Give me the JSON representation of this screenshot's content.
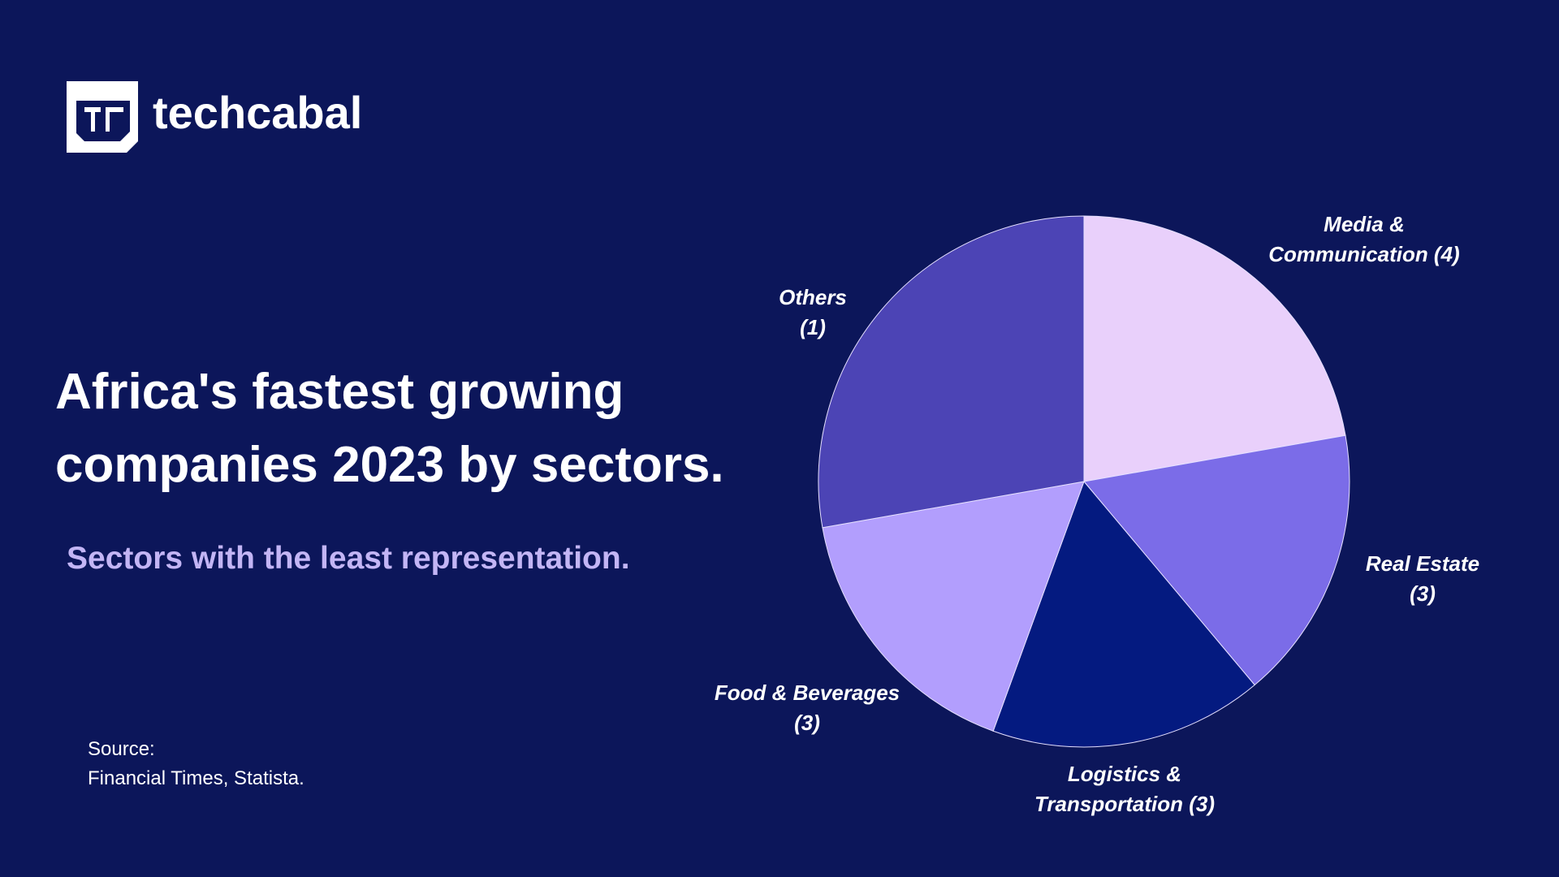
{
  "brand": {
    "name": "techcabal",
    "logo_text": "tC"
  },
  "title_lines": [
    "Africa's fastest growing",
    "companies 2023 by sectors."
  ],
  "subtitle": "Sectors with the least representation.",
  "source": {
    "label": "Source:",
    "text": "Financial Times, Statista."
  },
  "colors": {
    "background": "#0c165a",
    "subtitle": "#c3b5f5"
  },
  "chart_data": {
    "type": "pie",
    "start": "top, clockwise",
    "categories": [
      "Media & Communication",
      "Real Estate",
      "Logistics & Transportation",
      "Food & Beverages",
      "Others"
    ],
    "values": [
      4,
      3,
      3,
      3,
      5
    ],
    "labels": [
      {
        "line1": "Media &",
        "line2": "Communication (4)"
      },
      {
        "line1": "Real Estate",
        "line2": "(3)"
      },
      {
        "line1": "Logistics  &",
        "line2": "Transportation (3)"
      },
      {
        "line1": "Food & Beverages",
        "line2": "(3)"
      },
      {
        "line1": "Others",
        "line2": "(1)"
      }
    ],
    "colors": [
      "#e9d0fb",
      "#7b6ce8",
      "#041a80",
      "#b29efd",
      "#4c44b5"
    ]
  }
}
